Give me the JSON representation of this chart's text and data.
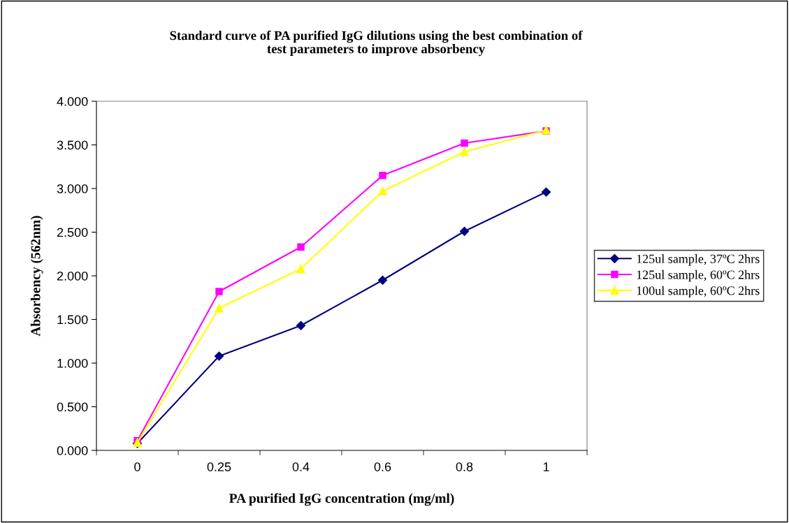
{
  "chart_data": {
    "type": "line",
    "title": "Standard curve of PA purified IgG dilutions using the best combination of\ntest parameters to improve absorbency",
    "xlabel": "PA purified IgG concentration (mg/ml)",
    "ylabel": "Absorbency (562nm)",
    "categories": [
      "0",
      "0.25",
      "0.4",
      "0.6",
      "0.8",
      "1"
    ],
    "ylim": [
      0,
      4
    ],
    "yticks": [
      {
        "value": 0,
        "label": "0.000"
      },
      {
        "value": 0.5,
        "label": "0.500"
      },
      {
        "value": 1,
        "label": "1.000"
      },
      {
        "value": 1.5,
        "label": "1.500"
      },
      {
        "value": 2,
        "label": "2.000"
      },
      {
        "value": 2.5,
        "label": "2.500"
      },
      {
        "value": 3,
        "label": "3.000"
      },
      {
        "value": 3.5,
        "label": "3.500"
      },
      {
        "value": 4,
        "label": "4.000"
      }
    ],
    "grid": false,
    "legend": "right",
    "line_style": "solid",
    "series": [
      {
        "name": "125ul sample, 37ºC 2hrs",
        "color": "#000080",
        "marker": "diamond",
        "values": [
          0.08,
          1.08,
          1.43,
          1.95,
          2.51,
          2.96
        ]
      },
      {
        "name": "125ul sample, 60ºC 2hrs",
        "color": "#ff00ff",
        "marker": "square",
        "values": [
          0.11,
          1.82,
          2.33,
          3.15,
          3.52,
          3.66
        ]
      },
      {
        "name": "100ul sample, 60ºC 2hrs",
        "color": "#ffff00",
        "marker": "triangle",
        "values": [
          0.09,
          1.63,
          2.08,
          2.97,
          3.42,
          3.67
        ]
      }
    ]
  }
}
